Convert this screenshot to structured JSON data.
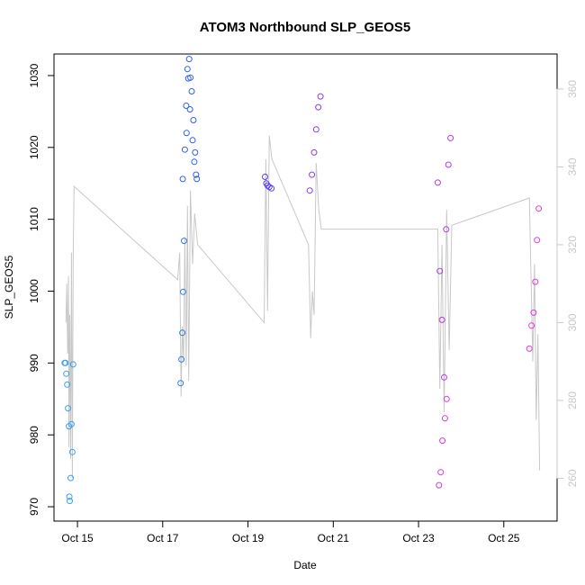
{
  "chart_data": {
    "type": "scatter",
    "title": "ATOM3 Northbound SLP_GEOS5",
    "xlabel": "Date",
    "ylabel": "SLP_GEOS5",
    "x_ticks": [
      "Oct 15",
      "Oct 17",
      "Oct 19",
      "Oct 21",
      "Oct 23",
      "Oct 25"
    ],
    "x_tick_values": [
      15,
      17,
      19,
      21,
      23,
      25
    ],
    "xlim": [
      14.45,
      26.25
    ],
    "ylim": [
      968,
      1033
    ],
    "y_ticks": [
      970,
      980,
      990,
      1000,
      1010,
      1020,
      1030
    ],
    "right_ylim": [
      249,
      369
    ],
    "right_y_ticks": [
      260,
      280,
      300,
      320,
      340,
      360
    ],
    "secondary_line_color": "#c8c8c8",
    "secondary_series": {
      "x": [
        14.73,
        14.75,
        14.77,
        14.79,
        14.8,
        14.82,
        14.84,
        14.86,
        14.88,
        14.9,
        14.92,
        17.35,
        17.4,
        17.43,
        17.46,
        17.49,
        17.52,
        17.55,
        17.58,
        17.61,
        17.65,
        17.7,
        17.75,
        17.82,
        19.38,
        19.42,
        19.46,
        19.5,
        19.56,
        20.42,
        20.47,
        20.51,
        20.55,
        20.6,
        20.66,
        20.72,
        23.45,
        23.5,
        23.55,
        23.6,
        23.66,
        23.72,
        23.78,
        25.6,
        25.68,
        25.72,
        25.76,
        25.8,
        25.84
      ],
      "y": [
        300,
        310,
        292,
        312,
        268,
        302,
        265,
        318,
        260,
        316,
        335,
        311,
        318,
        281,
        299,
        290,
        322,
        289,
        330,
        285,
        334,
        315,
        328,
        320,
        300,
        342,
        303,
        348,
        342,
        320,
        296,
        308,
        302,
        341,
        329,
        324,
        324,
        283,
        320,
        277,
        329,
        293,
        325,
        332,
        290,
        315,
        275,
        297,
        262
      ]
    },
    "series": [
      {
        "color": "#3aa0e6",
        "x": [
          14.7,
          14.72,
          14.74,
          14.76,
          14.78,
          14.8,
          14.81,
          14.82,
          14.84,
          14.86,
          14.88,
          14.9
        ],
        "y": [
          990,
          990,
          988.5,
          987,
          983.7,
          981.2,
          971.4,
          970.8,
          974,
          981.5,
          977.6,
          989.8
        ]
      },
      {
        "color": "#2b7ae0",
        "x": [
          17.42,
          17.44,
          17.46,
          17.48,
          17.5
        ],
        "y": [
          987.2,
          990.5,
          994.2,
          999.9,
          1007
        ]
      },
      {
        "color": "#3060e8",
        "x": [
          17.55,
          17.58,
          17.62,
          17.65,
          17.68,
          17.72,
          17.76,
          17.8
        ],
        "y": [
          1025.8,
          1030.9,
          1032.3,
          1029.7,
          1027.8,
          1023.8,
          1019.3,
          1015.6
        ]
      },
      {
        "color": "#2f5df0",
        "x": [
          17.47,
          17.52,
          17.56,
          17.6,
          17.64,
          17.7,
          17.74,
          17.78
        ],
        "y": [
          1015.6,
          1019.7,
          1022,
          1029.6,
          1025.3,
          1021,
          1018,
          1016.2
        ]
      },
      {
        "color": "#5a3cf0",
        "x": [
          19.4,
          19.43,
          19.46,
          19.5,
          19.55
        ],
        "y": [
          1015.9,
          1015,
          1014.7,
          1014.5,
          1014.3
        ]
      },
      {
        "color": "#8a3cf0",
        "x": [
          20.45,
          20.5,
          20.55,
          20.6,
          20.65,
          20.7
        ],
        "y": [
          1014,
          1016.2,
          1019.3,
          1022.5,
          1025.6,
          1027.1
        ]
      },
      {
        "color": "#b03ce8",
        "x": [
          23.45,
          23.5,
          23.55,
          23.6,
          23.65,
          23.7,
          23.75
        ],
        "y": [
          1015.1,
          1002.8,
          996,
          988,
          1008.6,
          1017.6,
          1021.3
        ]
      },
      {
        "color": "#d03cd8",
        "x": [
          23.48,
          23.52,
          23.56,
          23.62,
          23.66
        ],
        "y": [
          973,
          974.8,
          979.2,
          982.3,
          985
        ]
      },
      {
        "color": "#e03cd0",
        "x": [
          25.6,
          25.65,
          25.7,
          25.74,
          25.78,
          25.82
        ],
        "y": [
          992,
          995.2,
          997,
          1001.3,
          1007.1,
          1011.5
        ]
      }
    ]
  }
}
